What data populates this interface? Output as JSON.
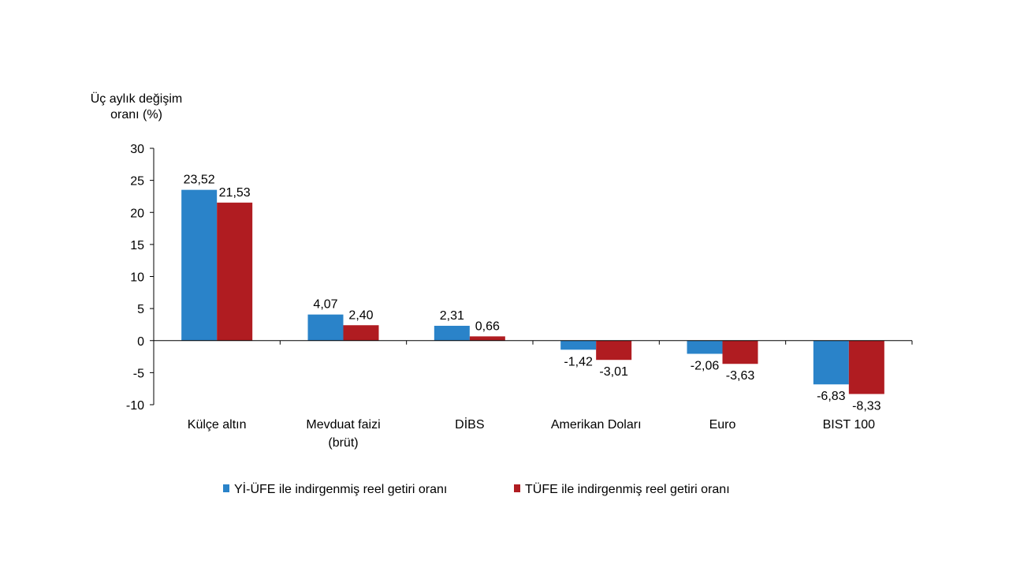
{
  "chart_data": {
    "type": "bar",
    "title": "",
    "ylabel_lines": [
      "Üç aylık değişim",
      "oranı (%)"
    ],
    "xlabel": "",
    "categories": [
      [
        "Külçe altın"
      ],
      [
        "Mevduat faizi",
        "(brüt)"
      ],
      [
        "DİBS"
      ],
      [
        "Amerikan Doları"
      ],
      [
        "Euro"
      ],
      [
        "BIST 100"
      ]
    ],
    "series": [
      {
        "name": "Yİ-ÜFE ile indirgenmiş reel getiri oranı",
        "color": "#2a83c9",
        "values": [
          23.52,
          4.07,
          2.31,
          -1.42,
          -2.06,
          -6.83
        ],
        "labels": [
          "23,52",
          "4,07",
          "2,31",
          "-1,42",
          "-2,06",
          "-6,83"
        ]
      },
      {
        "name": "TÜFE ile indirgenmiş reel getiri oranı",
        "color": "#b01c21",
        "values": [
          21.53,
          2.4,
          0.66,
          -3.01,
          -3.63,
          -8.33
        ],
        "labels": [
          "21,53",
          "2,40",
          "0,66",
          "-3,01",
          "-3,63",
          "-8,33"
        ]
      }
    ],
    "ylim": [
      -10,
      30
    ],
    "yticks": [
      30,
      25,
      20,
      15,
      10,
      5,
      0,
      -5,
      -10
    ],
    "grid": false,
    "legend_position": "bottom"
  }
}
